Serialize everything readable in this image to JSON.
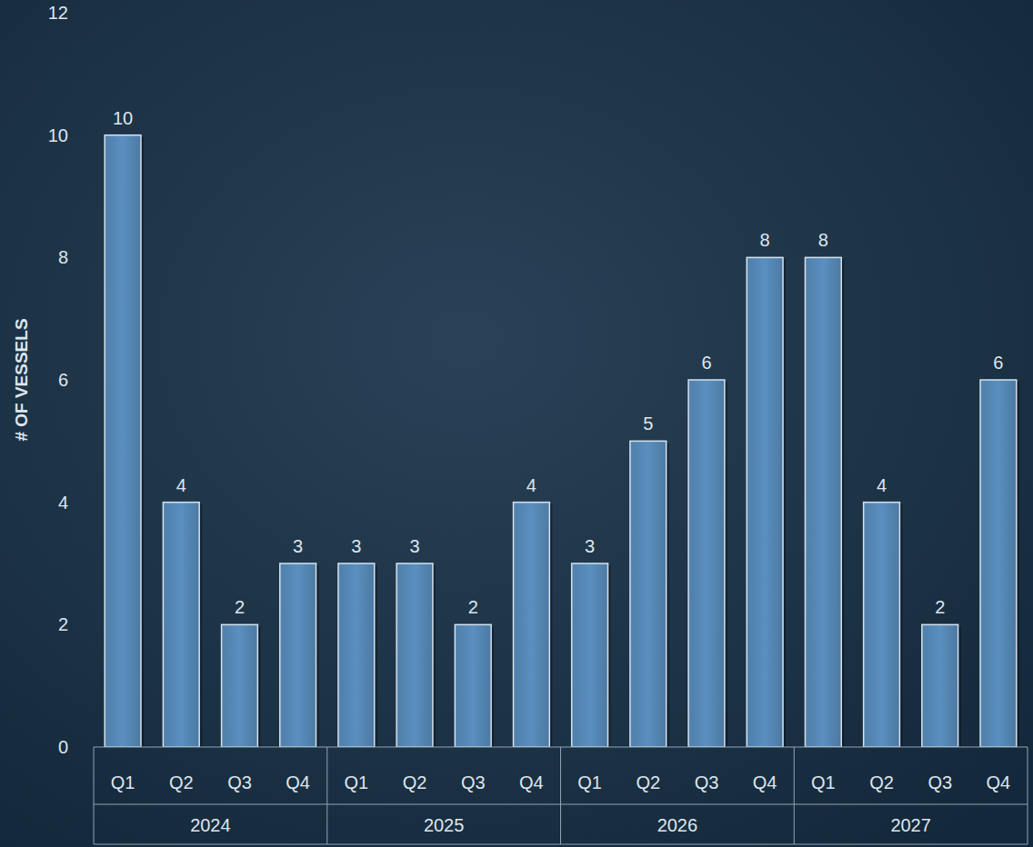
{
  "chart_data": {
    "type": "bar",
    "y_label": "# OF VESSELS",
    "categories": [
      "Q1",
      "Q2",
      "Q3",
      "Q4",
      "Q1",
      "Q2",
      "Q3",
      "Q4",
      "Q1",
      "Q2",
      "Q3",
      "Q4",
      "Q1",
      "Q2",
      "Q3",
      "Q4"
    ],
    "category_groups": [
      "2024",
      "2025",
      "2026",
      "2027"
    ],
    "values": [
      10,
      4,
      2,
      3,
      3,
      3,
      2,
      4,
      3,
      5,
      6,
      8,
      8,
      4,
      2,
      6
    ],
    "color": "#5a8fbf",
    "ylim": [
      0,
      12
    ],
    "yticks": [
      0,
      2,
      4,
      6,
      8,
      10,
      12
    ],
    "grid": false,
    "data_labels": true
  }
}
